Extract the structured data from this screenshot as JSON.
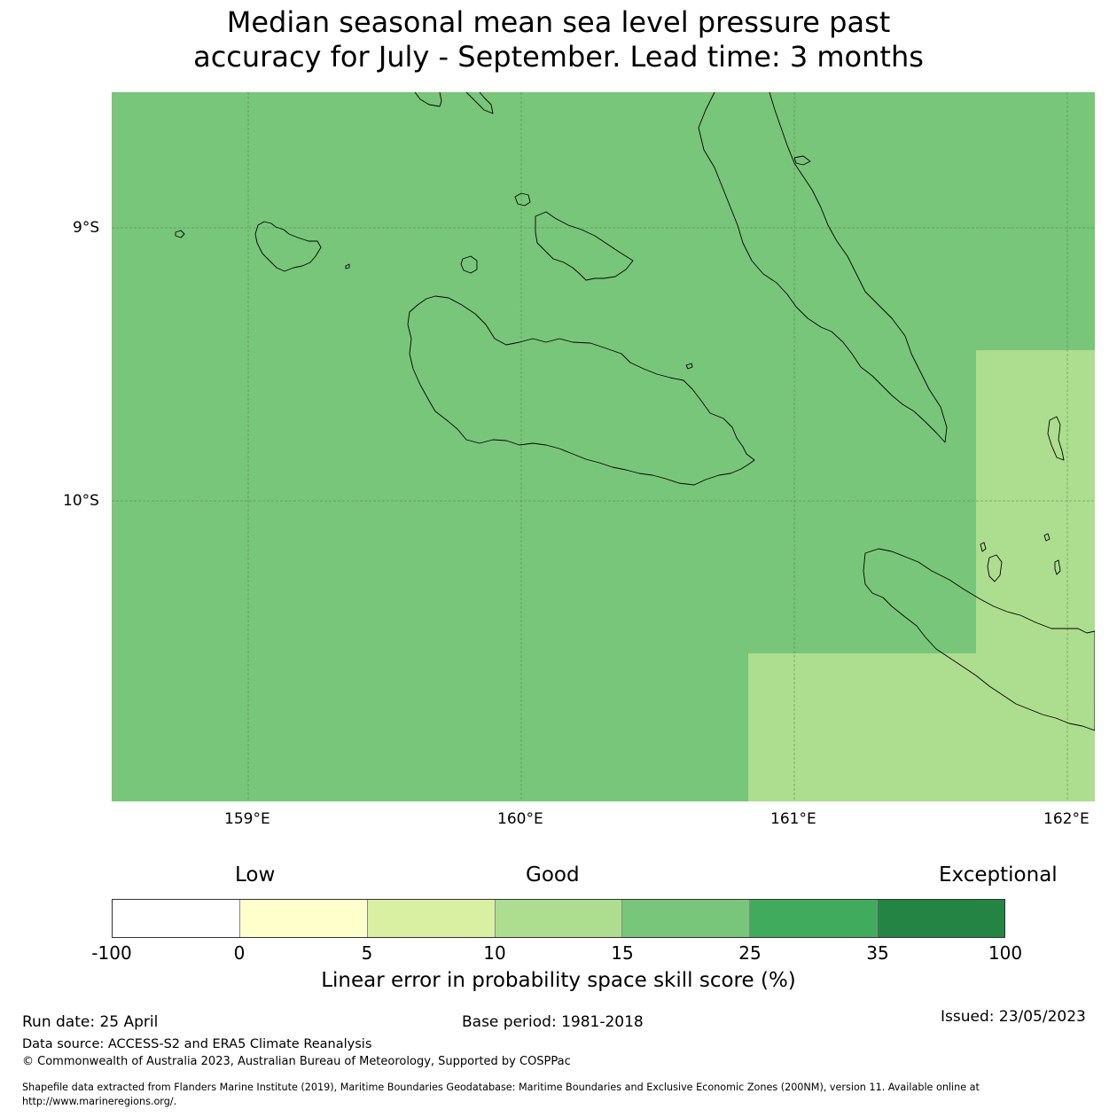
{
  "title_line1": "Median seasonal mean sea level pressure past",
  "title_line2": "accuracy for July - September. Lead time: 3 months",
  "map": {
    "lon_ticks": [
      "159°E",
      "160°E",
      "161°E",
      "162°E"
    ],
    "lat_ticks": [
      "9°S",
      "10°S"
    ],
    "colors": {
      "region_15_25": "#78c679",
      "region_10_15": "#addd8e",
      "gridline": "#4a7a4a",
      "coastline": "#000000"
    },
    "skill_bands": [
      {
        "lon_range": [
          158.5,
          162.1
        ],
        "lat_range": [
          -8.5,
          -11.1
        ],
        "band": "15-25"
      },
      {
        "lon_range": [
          161.67,
          162.1
        ],
        "lat_range": [
          -9.45,
          -11.1
        ],
        "band": "10-15"
      },
      {
        "lon_range": [
          160.83,
          162.1
        ],
        "lat_range": [
          -10.56,
          -11.1
        ],
        "band": "10-15"
      }
    ]
  },
  "colorbar": {
    "head_low": "Low",
    "head_good": "Good",
    "head_exceptional": "Exceptional",
    "ticks": [
      "-100",
      "0",
      "5",
      "10",
      "15",
      "25",
      "35",
      "100"
    ],
    "colors": [
      "#ffffff",
      "#ffffcc",
      "#d9f0a3",
      "#addd8e",
      "#78c679",
      "#41ab5d",
      "#238443"
    ],
    "label": "Linear error in probability space skill score (%)"
  },
  "footer": {
    "run_date": "Run date: 25 April",
    "base_period": "Base period: 1981-2018",
    "issued": "Issued: 23/05/2023",
    "data_source": "Data source: ACCESS-S2 and ERA5 Climate Reanalysis",
    "copyright": "© Commonwealth of Australia 2023, Australian Bureau of Meteorology, Supported by COSPPac",
    "shapefile_line1": "Shapefile data extracted from Flanders Marine Institute (2019), Maritime Boundaries Geodatabase: Maritime Boundaries and Exclusive Economic Zones (200NM), version 11. Available online at",
    "shapefile_line2": "http://www.marineregions.org/."
  }
}
